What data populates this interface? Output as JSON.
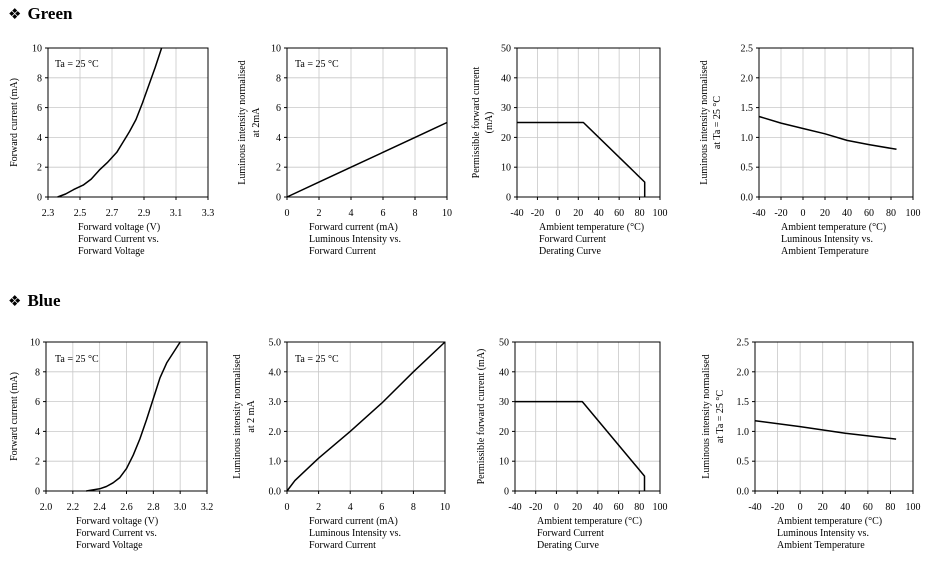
{
  "sections": [
    {
      "bullet": "❖",
      "title": "Green"
    },
    {
      "bullet": "❖",
      "title": "Blue"
    }
  ],
  "chart_data": [
    {
      "type": "line",
      "group": "Green",
      "xlabel": [
        "Forward voltage (V)",
        "Forward Current vs.",
        "Forward Voltage"
      ],
      "ylabel": [
        "Forward current (mA)"
      ],
      "xlim": [
        2.3,
        3.3
      ],
      "ylim": [
        0,
        10
      ],
      "xticks": [
        "2.3",
        "2.5",
        "2.7",
        "2.9",
        "3.1",
        "3.3"
      ],
      "yticks": [
        "0",
        "2",
        "4",
        "6",
        "8",
        "10"
      ],
      "annotation": "Ta = 25 °C",
      "x": [
        2.36,
        2.41,
        2.46,
        2.52,
        2.57,
        2.62,
        2.67,
        2.73,
        2.77,
        2.81,
        2.85,
        2.89,
        2.93,
        2.97,
        3.01
      ],
      "y": [
        0,
        0.2,
        0.5,
        0.8,
        1.2,
        1.8,
        2.3,
        3.0,
        3.7,
        4.4,
        5.2,
        6.3,
        7.5,
        8.7,
        10
      ]
    },
    {
      "type": "line",
      "group": "Green",
      "xlabel": [
        "Forward current (mA)",
        "Luminous Intensity vs.",
        "Forward Current"
      ],
      "ylabel": [
        "Luminous intensity normalised",
        "at 2mA"
      ],
      "xlim": [
        0,
        10
      ],
      "ylim": [
        0,
        10
      ],
      "xticks": [
        "0",
        "2",
        "4",
        "6",
        "8",
        "10"
      ],
      "yticks": [
        "0",
        "2",
        "4",
        "6",
        "8",
        "10"
      ],
      "annotation": "Ta = 25 °C",
      "x": [
        0,
        2,
        4,
        6,
        8,
        10
      ],
      "y": [
        0,
        1,
        2,
        3,
        4,
        5
      ]
    },
    {
      "type": "line",
      "group": "Green",
      "xlabel": [
        "Ambient temperature (°C)",
        "Forward Current",
        "Derating  Curve"
      ],
      "ylabel": [
        "Permissible forward current",
        "(mA)"
      ],
      "xlim": [
        -40,
        100
      ],
      "ylim": [
        0,
        50
      ],
      "xticks": [
        "-40",
        "-20",
        "0",
        "20",
        "40",
        "60",
        "80",
        "100"
      ],
      "yticks": [
        "0",
        "10",
        "20",
        "30",
        "40",
        "50"
      ],
      "annotation": "",
      "x": [
        -40,
        25,
        70,
        85,
        85
      ],
      "y": [
        25,
        25,
        10,
        5,
        0
      ]
    },
    {
      "type": "line",
      "group": "Green",
      "xlabel": [
        "Ambient temperature (°C)",
        "Luminous Intensity vs.",
        "Ambient Temperature"
      ],
      "ylabel": [
        "Luminous intensity normalised",
        "at Ta = 25 °C"
      ],
      "xlim": [
        -40,
        100
      ],
      "ylim": [
        0,
        2.5
      ],
      "xticks": [
        "-40",
        "-20",
        "0",
        "20",
        "40",
        "60",
        "80",
        "100"
      ],
      "yticks": [
        "0.0",
        "0.5",
        "1.0",
        "1.5",
        "2.0",
        "2.5"
      ],
      "annotation": "",
      "x": [
        -40,
        -20,
        0,
        20,
        40,
        60,
        85
      ],
      "y": [
        1.35,
        1.24,
        1.15,
        1.06,
        0.95,
        0.88,
        0.8
      ]
    },
    {
      "type": "line",
      "group": "Blue",
      "xlabel": [
        "Forward voltage (V)",
        "Forward Current vs.",
        "Forward Voltage"
      ],
      "ylabel": [
        "Forward current (mA)"
      ],
      "xlim": [
        2.0,
        3.2
      ],
      "ylim": [
        0,
        10
      ],
      "xticks": [
        "2.0",
        "2.2",
        "2.4",
        "2.6",
        "2.8",
        "3.0",
        "3.2"
      ],
      "yticks": [
        "0",
        "2",
        "4",
        "6",
        "8",
        "10"
      ],
      "annotation": "Ta = 25 °C",
      "x": [
        2.3,
        2.4,
        2.45,
        2.5,
        2.55,
        2.6,
        2.65,
        2.7,
        2.75,
        2.8,
        2.85,
        2.9,
        2.95,
        3.0
      ],
      "y": [
        0,
        0.15,
        0.3,
        0.55,
        0.9,
        1.5,
        2.4,
        3.5,
        4.8,
        6.2,
        7.6,
        8.6,
        9.3,
        10
      ]
    },
    {
      "type": "line",
      "group": "Blue",
      "xlabel": [
        "Forward current (mA)",
        "Luminous Intensity vs.",
        "Forward Current"
      ],
      "ylabel": [
        "Luminous intensity normalised",
        "at 2 mA"
      ],
      "xlim": [
        0,
        10
      ],
      "ylim": [
        0,
        5
      ],
      "xticks": [
        "0",
        "2",
        "4",
        "6",
        "8",
        "10"
      ],
      "yticks": [
        "0.0",
        "1.0",
        "2.0",
        "3.0",
        "4.0",
        "5.0"
      ],
      "annotation": "Ta = 25 °C",
      "x": [
        0,
        0.5,
        1,
        2,
        4,
        6,
        8,
        10
      ],
      "y": [
        0,
        0.35,
        0.6,
        1.1,
        2.0,
        2.95,
        4.0,
        5.0
      ]
    },
    {
      "type": "line",
      "group": "Blue",
      "xlabel": [
        "Ambient temperature (°C)",
        "Forward Current",
        "Derating  Curve"
      ],
      "ylabel": [
        "Permissible forward current (mA)"
      ],
      "xlim": [
        -40,
        100
      ],
      "ylim": [
        0,
        50
      ],
      "xticks": [
        "-40",
        "-20",
        "0",
        "20",
        "40",
        "60",
        "80",
        "100"
      ],
      "yticks": [
        "0",
        "10",
        "20",
        "30",
        "40",
        "50"
      ],
      "annotation": "",
      "x": [
        -40,
        25,
        85,
        85
      ],
      "y": [
        30,
        30,
        5,
        0
      ]
    },
    {
      "type": "line",
      "group": "Blue",
      "xlabel": [
        "Ambient temperature (°C)",
        "Luminous Intensity vs.",
        "Ambient Temperature"
      ],
      "ylabel": [
        "Luminous intensity normalised",
        "at Ta = 25 °C"
      ],
      "xlim": [
        -40,
        100
      ],
      "ylim": [
        0,
        2.5
      ],
      "xticks": [
        "-40",
        "-20",
        "0",
        "20",
        "40",
        "60",
        "80",
        "100"
      ],
      "yticks": [
        "0.0",
        "0.5",
        "1.0",
        "1.5",
        "2.0",
        "2.5"
      ],
      "annotation": "",
      "x": [
        -40,
        0,
        40,
        85
      ],
      "y": [
        1.18,
        1.08,
        0.97,
        0.87
      ]
    }
  ]
}
